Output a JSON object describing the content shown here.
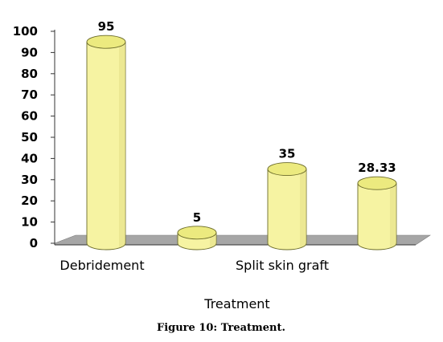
{
  "chart_data": {
    "type": "bar",
    "categories": [
      "Debridement",
      "",
      "Split skin graft",
      ""
    ],
    "values": [
      95,
      5,
      35,
      28.33
    ],
    "data_labels": [
      "95",
      "5",
      "35",
      "28.33"
    ],
    "xlabel": "Treatment",
    "ylabel": "",
    "ylim": [
      0,
      100
    ],
    "yticks": [
      "0",
      "10",
      "20",
      "30",
      "40",
      "50",
      "60",
      "70",
      "80",
      "90",
      "100"
    ],
    "grid": false,
    "legend": "none",
    "style": "3d-cylinder",
    "colors": {
      "bar_fill": "#f6f3a2",
      "bar_top": "#ecea7f",
      "bar_stroke": "#6b6b2a",
      "floor": "#a6a6a6",
      "axis": "#333333"
    }
  },
  "caption": "Figure 10: Treatment."
}
